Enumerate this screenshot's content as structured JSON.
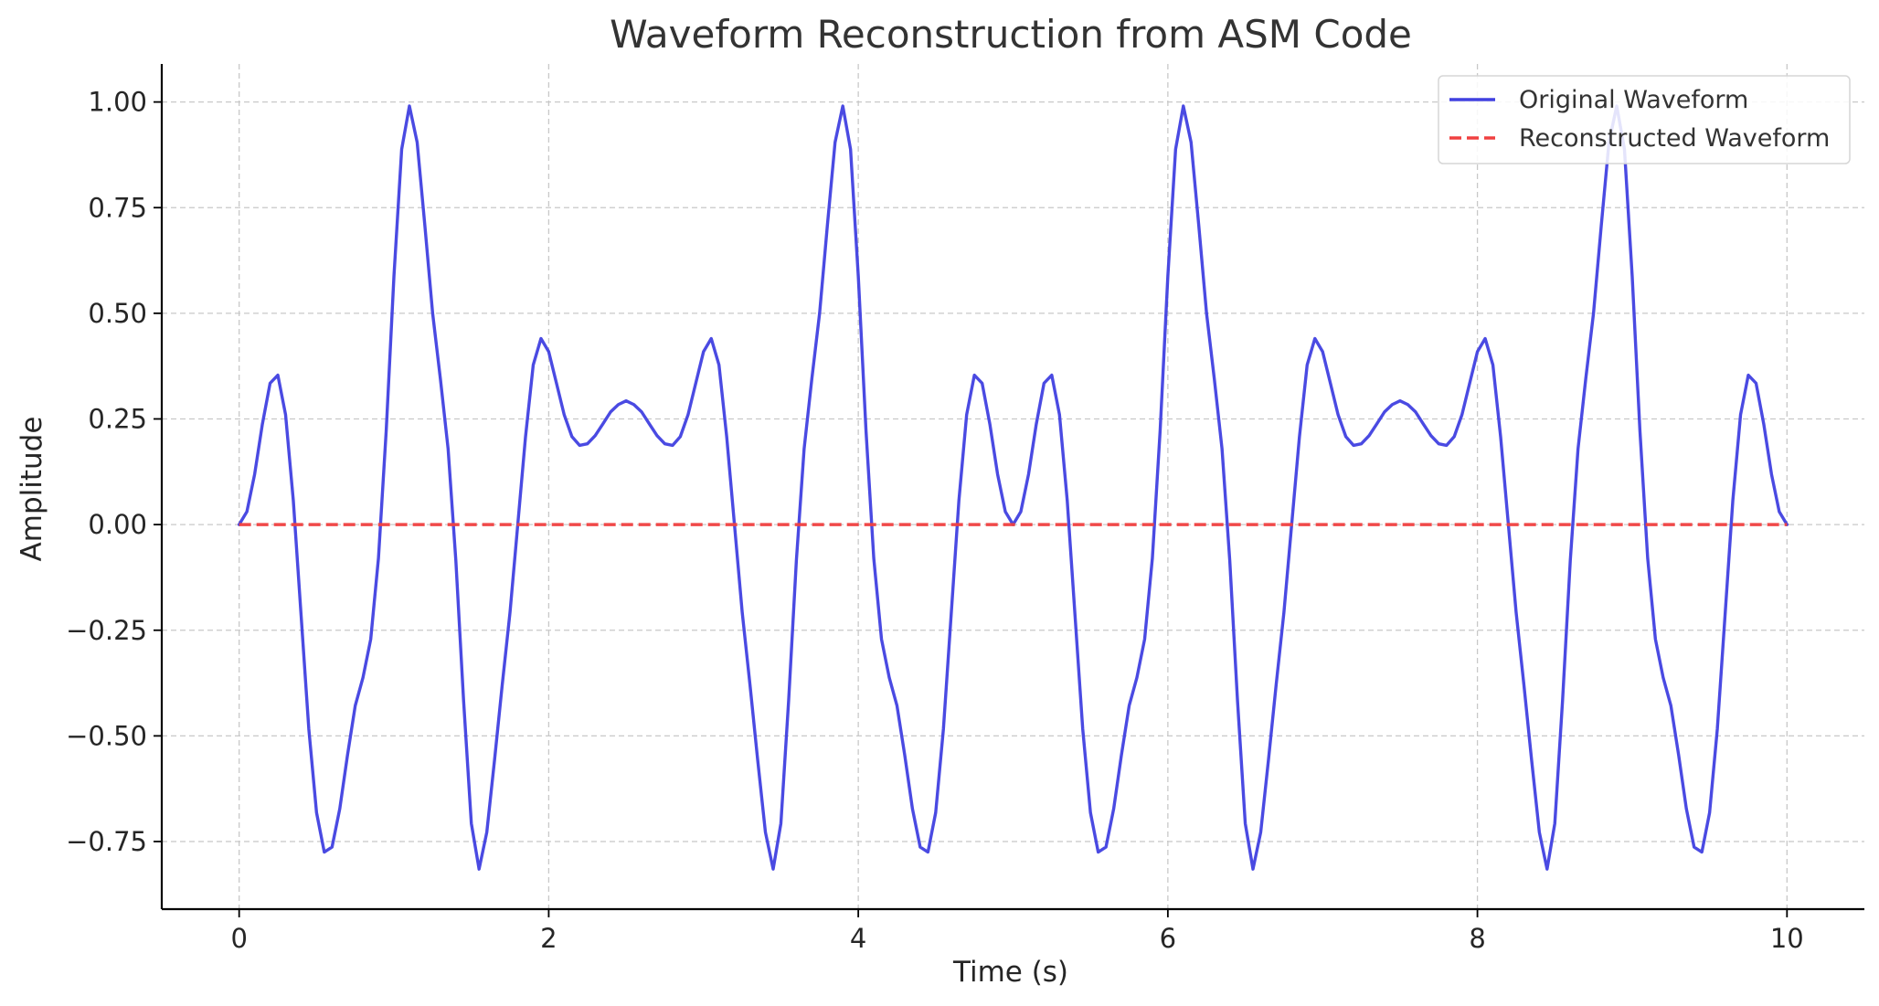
{
  "chart_data": {
    "type": "line",
    "title": "Waveform Reconstruction from ASM Code",
    "xlabel": "Time (s)",
    "ylabel": "Amplitude",
    "xlim": [
      -0.5,
      10.5
    ],
    "ylim": [
      -0.91,
      1.09
    ],
    "x_ticks": [
      0,
      2,
      4,
      6,
      8,
      10
    ],
    "x_tick_labels": [
      "0",
      "2",
      "4",
      "6",
      "8",
      "10"
    ],
    "y_ticks": [
      1.0,
      0.75,
      0.5,
      0.25,
      0.0,
      -0.25,
      -0.5,
      -0.75
    ],
    "y_tick_labels": [
      "1.00",
      "0.75",
      "0.50",
      "0.25",
      "0.00",
      "−0.25",
      "−0.50",
      "−0.75"
    ],
    "grid": true,
    "legend_position": "top-right",
    "series": [
      {
        "name": "Original Waveform",
        "color": "#4040e0",
        "style": "solid",
        "x": [
          0.0,
          0.05,
          0.1,
          0.15,
          0.2,
          0.25,
          0.3,
          0.35,
          0.4,
          0.45,
          0.5,
          0.55,
          0.6,
          0.65,
          0.7,
          0.75,
          0.8,
          0.85,
          0.9,
          0.95,
          1.0,
          1.05,
          1.1,
          1.15,
          1.2,
          1.25,
          1.3,
          1.35,
          1.4,
          1.45,
          1.5,
          1.55,
          1.6,
          1.65,
          1.7,
          1.75,
          1.8,
          1.85,
          1.9,
          1.95,
          2.0,
          2.05,
          2.1,
          2.15,
          2.2,
          2.25,
          2.3,
          2.35,
          2.4,
          2.45,
          2.5,
          2.55,
          2.6,
          2.65,
          2.7,
          2.75,
          2.8,
          2.85,
          2.9,
          2.95,
          3.0,
          3.05,
          3.1,
          3.15,
          3.2,
          3.25,
          3.3,
          3.35,
          3.4,
          3.45,
          3.5,
          3.55,
          3.6,
          3.65,
          3.7,
          3.75,
          3.8,
          3.85,
          3.9,
          3.95,
          4.0,
          4.05,
          4.1,
          4.15,
          4.2,
          4.25,
          4.3,
          4.35,
          4.4,
          4.45,
          4.5,
          4.55,
          4.6,
          4.65,
          4.7,
          4.75,
          4.8,
          4.85,
          4.9,
          4.95,
          5.0,
          5.05,
          5.1,
          5.15,
          5.2,
          5.25,
          5.3,
          5.35,
          5.4,
          5.45,
          5.5,
          5.55,
          5.6,
          5.65,
          5.7,
          5.75,
          5.8,
          5.85,
          5.9,
          5.95,
          6.0,
          6.05,
          6.1,
          6.15,
          6.2,
          6.25,
          6.3,
          6.35,
          6.4,
          6.45,
          6.5,
          6.55,
          6.6,
          6.65,
          6.7,
          6.75,
          6.8,
          6.85,
          6.9,
          6.95,
          7.0,
          7.05,
          7.1,
          7.15,
          7.2,
          7.25,
          7.3,
          7.35,
          7.4,
          7.45,
          7.5,
          7.55,
          7.6,
          7.65,
          7.7,
          7.75,
          7.8,
          7.85,
          7.9,
          7.95,
          8.0,
          8.05,
          8.1,
          8.15,
          8.2,
          8.25,
          8.3,
          8.35,
          8.4,
          8.45,
          8.5,
          8.55,
          8.6,
          8.65,
          8.7,
          8.75,
          8.8,
          8.85,
          8.9,
          8.95,
          9.0,
          9.05,
          9.1,
          9.15,
          9.2,
          9.25,
          9.3,
          9.35,
          9.4,
          9.45,
          9.5,
          9.55,
          9.6,
          9.65,
          9.7,
          9.75,
          9.8,
          9.85,
          9.9,
          9.95,
          10.0
        ],
        "y": [
          0.0,
          0.0305,
          0.1191,
          0.2378,
          0.3346,
          0.3536,
          0.2598,
          0.0566,
          -0.2139,
          -0.4836,
          -0.6816,
          -0.7749,
          -0.7632,
          -0.6726,
          -0.5454,
          -0.4286,
          -0.362,
          -0.2712,
          -0.0796,
          0.2216,
          0.5878,
          0.8879,
          0.9905,
          0.9046,
          0.7068,
          0.5,
          0.3453,
          0.1792,
          -0.085,
          -0.4168,
          -0.7071,
          -0.8153,
          -0.728,
          -0.5568,
          -0.3779,
          -0.2073,
          0.0,
          0.2073,
          0.3779,
          0.4402,
          0.4091,
          0.3346,
          0.2598,
          0.2081,
          0.1874,
          0.1913,
          0.2105,
          0.2382,
          0.2668,
          0.284,
          0.2929,
          0.284,
          0.2668,
          0.2382,
          0.2105,
          0.1913,
          0.1874,
          0.2081,
          0.2598,
          0.3346,
          0.4091,
          0.4402,
          0.3779,
          0.2073,
          0.0,
          -0.2073,
          -0.3779,
          -0.5568,
          -0.728,
          -0.8153,
          -0.7071,
          -0.4168,
          -0.085,
          0.1792,
          0.3453,
          0.5,
          0.7068,
          0.9046,
          0.9905,
          0.8879,
          0.5878,
          0.2216,
          -0.0796,
          -0.2712,
          -0.362,
          -0.4286,
          -0.5454,
          -0.6726,
          -0.7632,
          -0.7749,
          -0.6816,
          -0.4836,
          -0.2139,
          0.0566,
          0.2598,
          0.3536,
          0.3346,
          0.2378,
          0.1191,
          0.0305,
          0.0,
          0.0305,
          0.1191,
          0.2378,
          0.3346,
          0.3536,
          0.2598,
          0.0566,
          -0.2139,
          -0.4836,
          -0.6816,
          -0.7749,
          -0.7632,
          -0.6726,
          -0.5454,
          -0.4286,
          -0.362,
          -0.2712,
          -0.0796,
          0.2216,
          0.5878,
          0.8879,
          0.9905,
          0.9046,
          0.7068,
          0.5,
          0.3453,
          0.1792,
          -0.085,
          -0.4168,
          -0.7071,
          -0.8153,
          -0.728,
          -0.5568,
          -0.3779,
          -0.2073,
          0.0,
          0.2073,
          0.3779,
          0.4402,
          0.4091,
          0.3346,
          0.2598,
          0.2081,
          0.1874,
          0.1913,
          0.2105,
          0.2382,
          0.2668,
          0.284,
          0.2929,
          0.284,
          0.2668,
          0.2382,
          0.2105,
          0.1913,
          0.1874,
          0.2081,
          0.2598,
          0.3346,
          0.4091,
          0.4402,
          0.3779,
          0.2073,
          0.0,
          -0.2073,
          -0.3779,
          -0.5568,
          -0.728,
          -0.8153,
          -0.7071,
          -0.4168,
          -0.085,
          0.1792,
          0.3453,
          0.5,
          0.7068,
          0.9046,
          0.9905,
          0.8879,
          0.5878,
          0.2216,
          -0.0796,
          -0.2712,
          -0.362,
          -0.4286,
          -0.5454,
          -0.6726,
          -0.7632,
          -0.7749,
          -0.6816,
          -0.4836,
          -0.2139,
          0.0566,
          0.2598,
          0.3536,
          0.3346,
          0.2378,
          0.1191,
          0.0305,
          0.0
        ]
      },
      {
        "name": "Reconstructed Waveform",
        "color": "#f04040",
        "style": "dashed",
        "x": [
          0,
          10
        ],
        "y": [
          0,
          0
        ]
      }
    ]
  }
}
